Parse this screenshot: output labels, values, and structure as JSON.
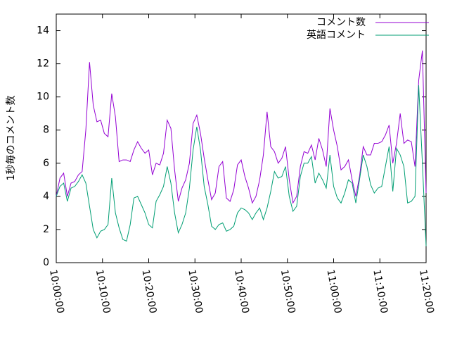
{
  "chart_data": {
    "type": "line",
    "ylabel": "1秒毎のコメント数",
    "x": [
      "10:00:00",
      "10:00:48",
      "10:01:36",
      "10:02:24",
      "10:03:12",
      "10:04:00",
      "10:04:48",
      "10:05:36",
      "10:06:24",
      "10:07:12",
      "10:08:00",
      "10:08:48",
      "10:09:36",
      "10:10:24",
      "10:11:12",
      "10:12:00",
      "10:12:48",
      "10:13:36",
      "10:14:24",
      "10:15:12",
      "10:16:00",
      "10:16:48",
      "10:17:36",
      "10:18:24",
      "10:19:12",
      "10:20:00",
      "10:20:48",
      "10:21:36",
      "10:22:24",
      "10:23:12",
      "10:24:00",
      "10:24:48",
      "10:25:36",
      "10:26:24",
      "10:27:12",
      "10:28:00",
      "10:28:48",
      "10:29:36",
      "10:30:24",
      "10:31:12",
      "10:32:00",
      "10:32:48",
      "10:33:36",
      "10:34:24",
      "10:35:12",
      "10:36:00",
      "10:36:48",
      "10:37:36",
      "10:38:24",
      "10:39:12",
      "10:40:00",
      "10:40:48",
      "10:41:36",
      "10:42:24",
      "10:43:12",
      "10:44:00",
      "10:44:48",
      "10:45:36",
      "10:46:24",
      "10:47:12",
      "10:48:00",
      "10:48:48",
      "10:49:36",
      "10:50:24",
      "10:51:12",
      "10:52:00",
      "10:52:48",
      "10:53:36",
      "10:54:24",
      "10:55:12",
      "10:56:00",
      "10:56:48",
      "10:57:36",
      "10:58:24",
      "10:59:12",
      "11:00:00",
      "11:00:48",
      "11:01:36",
      "11:02:24",
      "11:03:12",
      "11:04:00",
      "11:04:48",
      "11:05:36",
      "11:06:24",
      "11:07:12",
      "11:08:00",
      "11:08:48",
      "11:09:36",
      "11:10:24",
      "11:11:12",
      "11:12:00",
      "11:12:48",
      "11:13:36",
      "11:14:24",
      "11:15:12",
      "11:16:00",
      "11:16:48",
      "11:17:36",
      "11:18:24",
      "11:19:12",
      "11:20:00"
    ],
    "series": [
      {
        "name": "コメント数",
        "color": "#9400d3",
        "values": [
          4.0,
          5.1,
          5.4,
          4.0,
          4.8,
          4.9,
          5.3,
          5.5,
          8.0,
          12.1,
          9.5,
          8.5,
          8.6,
          7.8,
          7.6,
          10.2,
          8.8,
          6.1,
          6.2,
          6.2,
          6.1,
          6.8,
          7.3,
          6.9,
          6.6,
          6.8,
          5.3,
          6.0,
          5.9,
          6.6,
          8.6,
          8.1,
          5.6,
          3.7,
          4.5,
          5.0,
          6.0,
          8.4,
          8.9,
          7.8,
          6.3,
          5.0,
          3.8,
          4.2,
          5.8,
          6.1,
          3.9,
          3.7,
          4.4,
          5.9,
          6.2,
          5.2,
          4.5,
          3.6,
          4.0,
          5.0,
          6.5,
          9.1,
          7.0,
          6.7,
          6.0,
          6.3,
          7.0,
          5.0,
          3.6,
          4.0,
          5.8,
          6.7,
          6.6,
          7.1,
          6.2,
          7.5,
          6.8,
          5.8,
          9.3,
          8.0,
          7.0,
          5.6,
          5.8,
          6.2,
          5.0,
          4.0,
          5.2,
          7.0,
          6.5,
          6.5,
          7.2,
          7.2,
          7.3,
          7.7,
          8.3,
          6.0,
          7.2,
          9.0,
          7.2,
          7.4,
          7.3,
          5.8,
          11.0,
          12.8,
          4.2
        ]
      },
      {
        "name": "英語コメント",
        "color": "#009e73",
        "values": [
          4.0,
          4.6,
          4.8,
          3.7,
          4.5,
          4.6,
          4.9,
          5.3,
          4.8,
          3.4,
          2.0,
          1.5,
          1.9,
          2.0,
          2.3,
          5.1,
          3.0,
          2.1,
          1.4,
          1.3,
          2.3,
          3.9,
          4.0,
          3.5,
          3.0,
          2.3,
          2.1,
          3.7,
          4.1,
          4.6,
          5.8,
          4.8,
          3.0,
          1.8,
          2.3,
          3.0,
          4.5,
          6.8,
          8.2,
          6.8,
          4.6,
          3.5,
          2.2,
          2.0,
          2.3,
          2.4,
          1.9,
          2.0,
          2.2,
          3.0,
          3.3,
          3.2,
          3.0,
          2.6,
          3.0,
          3.3,
          2.6,
          3.3,
          4.3,
          5.5,
          5.1,
          5.2,
          5.8,
          4.0,
          3.1,
          3.4,
          5.2,
          6.0,
          6.0,
          6.4,
          4.8,
          5.4,
          5.0,
          4.5,
          6.5,
          4.6,
          3.9,
          3.6,
          4.2,
          5.0,
          4.8,
          3.6,
          5.0,
          6.5,
          5.8,
          4.7,
          4.2,
          4.5,
          4.6,
          5.8,
          7.0,
          4.3,
          6.9,
          6.5,
          5.8,
          3.6,
          3.7,
          4.0,
          10.7,
          6.0,
          1.0
        ]
      }
    ],
    "xlim": [
      "10:00:00",
      "11:20:00"
    ],
    "xticks": [
      "10:00:00",
      "10:10:00",
      "10:20:00",
      "10:30:00",
      "10:40:00",
      "10:50:00",
      "11:00:00",
      "11:10:00",
      "11:20:00"
    ],
    "ylim": [
      0,
      15
    ],
    "yticks": [
      0,
      2,
      4,
      6,
      8,
      10,
      12,
      14
    ],
    "legend": "top-right",
    "grid": false
  }
}
